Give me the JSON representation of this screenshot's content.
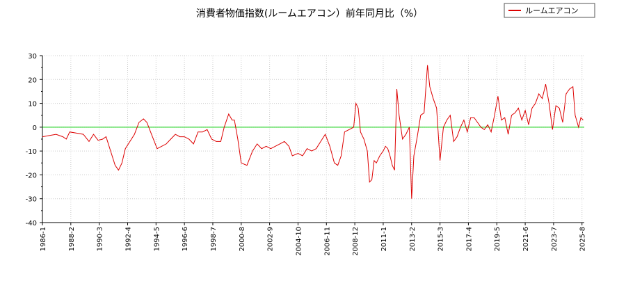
{
  "chart_data": {
    "type": "line",
    "title": "消費者物価指数(ルームエアコン）前年同月比（%）",
    "xlabel": "",
    "ylabel": "",
    "ylim": [
      -40,
      30
    ],
    "yticks": [
      30,
      20,
      10,
      0,
      -10,
      -20,
      -30,
      -40
    ],
    "xlim": [
      "1986-01",
      "2025-10"
    ],
    "xticks": [
      "1986-1",
      "1988-2",
      "1990-3",
      "1992-4",
      "1994-5",
      "1996-6",
      "1998-7",
      "2000-8",
      "2002-9",
      "2004-10",
      "2006-11",
      "2008-12",
      "2011-1",
      "2013-2",
      "2015-3",
      "2017-4",
      "2019-5",
      "2021-6",
      "2023-7",
      "2025-8"
    ],
    "grid": true,
    "legend_position": "top-right",
    "zero_line": {
      "y": 0,
      "color": "#00cc00"
    },
    "series": [
      {
        "name": "ルームエアコン",
        "color": "#dd0000",
        "points": [
          [
            "1986-01",
            -4
          ],
          [
            "1986-07",
            -3.5
          ],
          [
            "1987-01",
            -3
          ],
          [
            "1987-07",
            -4
          ],
          [
            "1987-10",
            -5
          ],
          [
            "1988-01",
            -2
          ],
          [
            "1988-07",
            -2.5
          ],
          [
            "1989-01",
            -3
          ],
          [
            "1989-06",
            -6
          ],
          [
            "1989-10",
            -3
          ],
          [
            "1990-02",
            -5.5
          ],
          [
            "1990-06",
            -5
          ],
          [
            "1990-09",
            -4
          ],
          [
            "1991-01",
            -10
          ],
          [
            "1991-05",
            -16
          ],
          [
            "1991-08",
            -18
          ],
          [
            "1991-11",
            -15
          ],
          [
            "1992-02",
            -9
          ],
          [
            "1992-06",
            -6
          ],
          [
            "1992-10",
            -3
          ],
          [
            "1993-02",
            2
          ],
          [
            "1993-06",
            3.5
          ],
          [
            "1993-09",
            2
          ],
          [
            "1994-01",
            -3
          ],
          [
            "1994-06",
            -9
          ],
          [
            "1994-10",
            -8
          ],
          [
            "1995-02",
            -7
          ],
          [
            "1995-06",
            -5
          ],
          [
            "1995-10",
            -3
          ],
          [
            "1996-02",
            -4
          ],
          [
            "1996-06",
            -4
          ],
          [
            "1996-10",
            -5
          ],
          [
            "1997-02",
            -7
          ],
          [
            "1997-06",
            -2
          ],
          [
            "1997-10",
            -2
          ],
          [
            "1998-02",
            -1
          ],
          [
            "1998-06",
            -5
          ],
          [
            "1998-10",
            -6
          ],
          [
            "1999-02",
            -6
          ],
          [
            "1999-05",
            0
          ],
          [
            "1999-09",
            5.5
          ],
          [
            "1999-12",
            3
          ],
          [
            "2000-02",
            3
          ],
          [
            "2000-05",
            -5
          ],
          [
            "2000-08",
            -15
          ],
          [
            "2001-01",
            -16
          ],
          [
            "2001-06",
            -10
          ],
          [
            "2001-10",
            -7
          ],
          [
            "2002-02",
            -9
          ],
          [
            "2002-06",
            -8
          ],
          [
            "2002-10",
            -9
          ],
          [
            "2003-02",
            -8
          ],
          [
            "2003-06",
            -7
          ],
          [
            "2003-10",
            -6
          ],
          [
            "2004-02",
            -8
          ],
          [
            "2004-05",
            -12
          ],
          [
            "2004-10",
            -11
          ],
          [
            "2005-02",
            -12
          ],
          [
            "2005-06",
            -9
          ],
          [
            "2005-10",
            -10
          ],
          [
            "2006-02",
            -9
          ],
          [
            "2006-06",
            -6
          ],
          [
            "2006-10",
            -3
          ],
          [
            "2007-02",
            -8
          ],
          [
            "2007-06",
            -15
          ],
          [
            "2007-09",
            -16
          ],
          [
            "2007-12",
            -12
          ],
          [
            "2008-03",
            -2
          ],
          [
            "2008-07",
            -1
          ],
          [
            "2008-11",
            0
          ],
          [
            "2009-01",
            10
          ],
          [
            "2009-03",
            8
          ],
          [
            "2009-05",
            -2
          ],
          [
            "2009-08",
            -5
          ],
          [
            "2009-11",
            -10
          ],
          [
            "2010-01",
            -23
          ],
          [
            "2010-03",
            -22
          ],
          [
            "2010-05",
            -14
          ],
          [
            "2010-07",
            -15
          ],
          [
            "2010-10",
            -12
          ],
          [
            "2011-01",
            -10
          ],
          [
            "2011-03",
            -8
          ],
          [
            "2011-05",
            -9
          ],
          [
            "2011-07",
            -12
          ],
          [
            "2011-09",
            -16
          ],
          [
            "2011-11",
            -18
          ],
          [
            "2012-01",
            16
          ],
          [
            "2012-03",
            5
          ],
          [
            "2012-06",
            -5
          ],
          [
            "2012-09",
            -3
          ],
          [
            "2012-12",
            0
          ],
          [
            "2013-02",
            -30
          ],
          [
            "2013-04",
            -12
          ],
          [
            "2013-07",
            -4
          ],
          [
            "2013-10",
            5
          ],
          [
            "2014-01",
            6
          ],
          [
            "2014-04",
            26
          ],
          [
            "2014-06",
            17
          ],
          [
            "2014-09",
            12
          ],
          [
            "2014-12",
            8
          ],
          [
            "2015-03",
            -14
          ],
          [
            "2015-06",
            0
          ],
          [
            "2015-09",
            3
          ],
          [
            "2015-12",
            5
          ],
          [
            "2016-03",
            -6
          ],
          [
            "2016-06",
            -4
          ],
          [
            "2016-09",
            0
          ],
          [
            "2016-12",
            3
          ],
          [
            "2017-03",
            -2
          ],
          [
            "2017-06",
            4
          ],
          [
            "2017-09",
            4
          ],
          [
            "2017-12",
            2
          ],
          [
            "2018-03",
            0
          ],
          [
            "2018-06",
            -1
          ],
          [
            "2018-09",
            1
          ],
          [
            "2018-12",
            -2
          ],
          [
            "2019-03",
            5
          ],
          [
            "2019-06",
            13
          ],
          [
            "2019-09",
            3
          ],
          [
            "2019-12",
            4
          ],
          [
            "2020-03",
            -3
          ],
          [
            "2020-06",
            5
          ],
          [
            "2020-09",
            6
          ],
          [
            "2020-12",
            8
          ],
          [
            "2021-03",
            3
          ],
          [
            "2021-06",
            7
          ],
          [
            "2021-09",
            1
          ],
          [
            "2021-12",
            8
          ],
          [
            "2022-03",
            10
          ],
          [
            "2022-06",
            14
          ],
          [
            "2022-09",
            12
          ],
          [
            "2022-12",
            18
          ],
          [
            "2023-03",
            10
          ],
          [
            "2023-06",
            -1
          ],
          [
            "2023-09",
            9
          ],
          [
            "2023-12",
            8
          ],
          [
            "2024-03",
            2
          ],
          [
            "2024-06",
            14
          ],
          [
            "2024-09",
            16
          ],
          [
            "2024-12",
            17
          ],
          [
            "2025-02",
            5
          ],
          [
            "2025-05",
            0
          ],
          [
            "2025-07",
            4
          ],
          [
            "2025-09",
            3
          ]
        ]
      }
    ]
  }
}
